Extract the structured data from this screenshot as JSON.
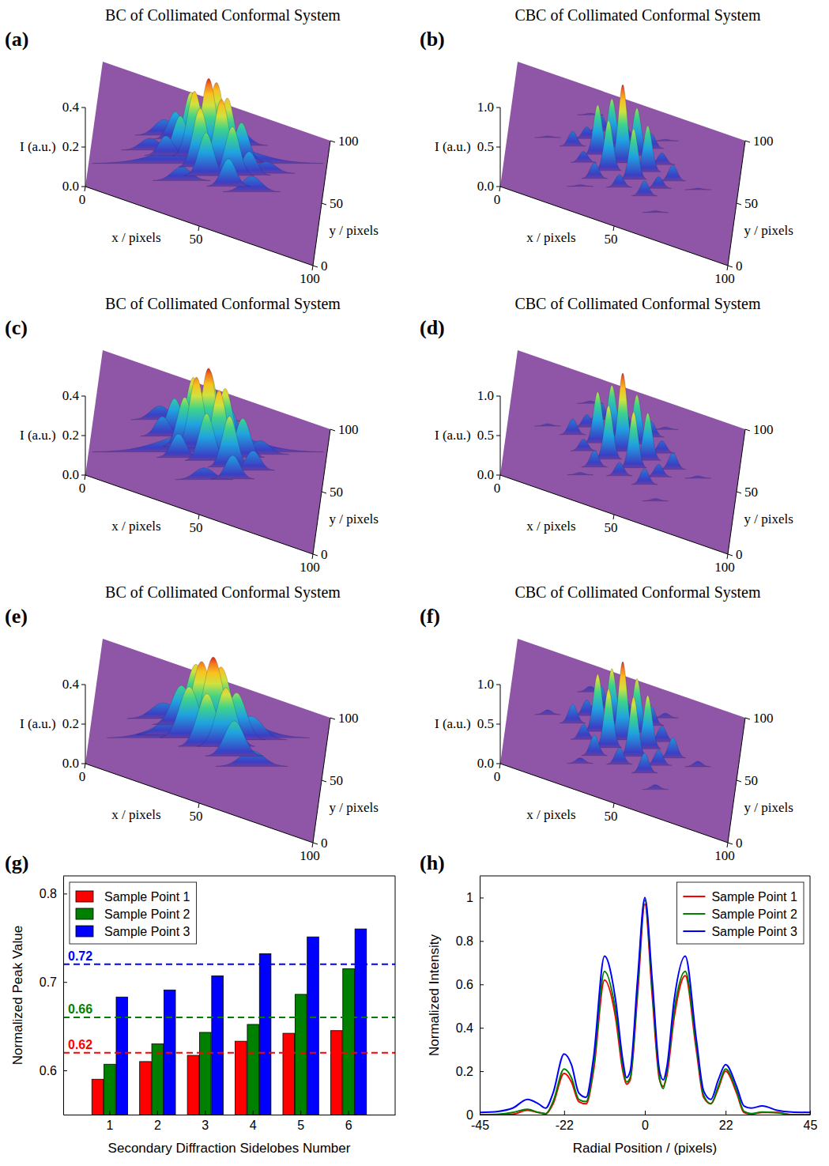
{
  "chart_data": [
    {
      "type": "surface",
      "panel_label": "(a)",
      "title": "BC of Collimated Conformal System",
      "x_label": "x / pixels",
      "y_label": "y / pixels",
      "z_label": "I (a.u.)",
      "xlim": [
        0,
        100
      ],
      "xticks": [
        0,
        50,
        100
      ],
      "ylim": [
        0,
        100
      ],
      "yticks": [
        0,
        50,
        100
      ],
      "zlim": [
        0,
        0.4
      ],
      "zticks": [
        {
          "value": 0,
          "label": "0.0"
        },
        0.2,
        0.4
      ],
      "peaks": {
        "x": [
          50,
          50,
          44,
          56,
          47,
          53,
          58,
          42,
          61,
          38,
          50,
          64,
          45,
          35,
          60,
          68,
          32,
          55,
          30,
          70,
          40,
          62,
          25,
          75
        ],
        "y": [
          50,
          55,
          52,
          50,
          45,
          60,
          57,
          58,
          47,
          49,
          40,
          60,
          65,
          60,
          38,
          52,
          45,
          70,
          60,
          40,
          30,
          72,
          45,
          58
        ],
        "values": [
          0.12,
          0.4,
          0.33,
          0.35,
          0.3,
          0.36,
          0.32,
          0.28,
          0.25,
          0.2,
          0.22,
          0.2,
          0.18,
          0.14,
          0.14,
          0.12,
          0.1,
          0.1,
          0.08,
          0.08,
          0.07,
          0.08,
          0.06,
          0.06
        ],
        "widths": [
          16,
          3,
          3,
          3,
          3,
          3,
          3,
          3,
          3,
          3,
          3,
          3,
          3,
          3,
          3,
          3,
          3,
          3,
          4,
          4,
          4,
          4,
          4,
          4
        ]
      }
    },
    {
      "type": "surface",
      "panel_label": "(b)",
      "title": "CBC of Collimated Conformal System",
      "x_label": "x / pixels",
      "y_label": "y / pixels",
      "z_label": "I (a.u.)",
      "xlim": [
        0,
        100
      ],
      "xticks": [
        0,
        50,
        100
      ],
      "ylim": [
        0,
        100
      ],
      "yticks": [
        0,
        50,
        100
      ],
      "zlim": [
        0,
        1
      ],
      "zticks": [
        {
          "value": 0,
          "label": "0.0"
        },
        0.5,
        {
          "value": 1,
          "label": "1.0"
        }
      ],
      "peaks": {
        "x": [
          50,
          61,
          55.5,
          44.5,
          39,
          44.5,
          55.5,
          66.5,
          50,
          33.5,
          33.5,
          50,
          66.5,
          72,
          61,
          39,
          28,
          39,
          61,
          83,
          66.5,
          33.5,
          17,
          33.5,
          66.5
        ],
        "y": [
          50,
          50,
          59.5,
          59.5,
          50,
          40.5,
          40.5,
          59.5,
          69,
          59.5,
          40.5,
          31,
          40.5,
          50,
          69,
          69,
          50,
          31,
          31,
          50,
          78.6,
          78.6,
          50,
          21.4,
          21.4
        ],
        "values": [
          1,
          0.59,
          0.61,
          0.617,
          0.633,
          0.642,
          0.645,
          0.15,
          0.16,
          0.15,
          0.14,
          0.16,
          0.15,
          0.2,
          0.19,
          0.2,
          0.19,
          0.2,
          0.19,
          0.02,
          0.02,
          0.02,
          0.02,
          0.02,
          0.02
        ],
        "widths": [
          1.8,
          1.8,
          1.8,
          1.8,
          1.8,
          1.8,
          1.8,
          1.8,
          1.8,
          1.8,
          1.8,
          1.8,
          1.8,
          1.8,
          1.8,
          1.8,
          1.8,
          1.8,
          1.8,
          1.8,
          1.8,
          1.8,
          1.8,
          1.8,
          1.8
        ]
      }
    },
    {
      "type": "surface",
      "panel_label": "(c)",
      "title": "BC of Collimated Conformal System",
      "x_label": "x / pixels",
      "y_label": "y / pixels",
      "z_label": "I (a.u.)",
      "xlim": [
        0,
        100
      ],
      "xticks": [
        0,
        50,
        100
      ],
      "ylim": [
        0,
        100
      ],
      "yticks": [
        0,
        50,
        100
      ],
      "zlim": [
        0,
        0.4
      ],
      "zticks": [
        {
          "value": 0,
          "label": "0.0"
        },
        0.2,
        0.4
      ],
      "peaks": {
        "x": [
          50,
          50,
          45,
          55,
          50,
          57,
          43,
          40,
          60,
          50,
          65,
          35,
          46,
          58,
          62,
          38,
          70,
          30,
          28,
          72,
          50,
          50
        ],
        "y": [
          50,
          54,
          50,
          49,
          60,
          58,
          58,
          48,
          44,
          43,
          55,
          55,
          67,
          66,
          36,
          38,
          48,
          50,
          62,
          62,
          28,
          75
        ],
        "values": [
          0.12,
          0.4,
          0.36,
          0.34,
          0.35,
          0.3,
          0.3,
          0.25,
          0.26,
          0.24,
          0.2,
          0.18,
          0.18,
          0.16,
          0.12,
          0.12,
          0.1,
          0.1,
          0.07,
          0.07,
          0.06,
          0.06
        ],
        "widths": [
          16,
          3,
          3,
          3,
          3,
          3,
          3,
          3,
          3,
          3,
          3,
          3,
          3,
          3,
          3,
          3,
          3,
          3,
          4,
          4,
          4,
          4
        ]
      }
    },
    {
      "type": "surface",
      "panel_label": "(d)",
      "title": "CBC of Collimated Conformal System",
      "x_label": "x / pixels",
      "y_label": "y / pixels",
      "z_label": "I (a.u.)",
      "xlim": [
        0,
        100
      ],
      "xticks": [
        0,
        50,
        100
      ],
      "ylim": [
        0,
        100
      ],
      "yticks": [
        0,
        50,
        100
      ],
      "zlim": [
        0,
        1
      ],
      "zticks": [
        {
          "value": 0,
          "label": "0.0"
        },
        0.5,
        {
          "value": 1,
          "label": "1.0"
        }
      ],
      "peaks": {
        "x": [
          50,
          61,
          55.5,
          44.5,
          39,
          44.5,
          55.5,
          66.5,
          50,
          33.5,
          33.5,
          50,
          66.5,
          72,
          61,
          39,
          28,
          39,
          61,
          83,
          66.5,
          33.5,
          17,
          33.5,
          66.5
        ],
        "y": [
          50,
          50,
          59.5,
          59.5,
          50,
          40.5,
          40.5,
          59.5,
          69,
          59.5,
          40.5,
          31,
          40.5,
          50,
          69,
          69,
          50,
          31,
          31,
          50,
          78.6,
          78.6,
          50,
          21.4,
          21.4
        ],
        "values": [
          1,
          0.607,
          0.63,
          0.643,
          0.652,
          0.686,
          0.715,
          0.16,
          0.17,
          0.16,
          0.15,
          0.17,
          0.16,
          0.21,
          0.2,
          0.21,
          0.2,
          0.21,
          0.2,
          0.03,
          0.03,
          0.03,
          0.03,
          0.03,
          0.03
        ],
        "widths": [
          1.8,
          1.8,
          1.8,
          1.8,
          1.8,
          1.8,
          1.8,
          1.8,
          1.8,
          1.8,
          1.8,
          1.8,
          1.8,
          1.8,
          1.8,
          1.8,
          1.8,
          1.8,
          1.8,
          1.8,
          1.8,
          1.8,
          1.8,
          1.8,
          1.8
        ]
      }
    },
    {
      "type": "surface",
      "panel_label": "(e)",
      "title": "BC of Collimated Conformal System",
      "x_label": "x / pixels",
      "y_label": "y / pixels",
      "z_label": "I (a.u.)",
      "xlim": [
        0,
        100
      ],
      "xticks": [
        0,
        50,
        100
      ],
      "ylim": [
        0,
        100
      ],
      "yticks": [
        0,
        50,
        100
      ],
      "zlim": [
        0,
        0.4
      ],
      "zticks": [
        {
          "value": 0,
          "label": "0.0"
        },
        0.2,
        0.4
      ],
      "peaks": {
        "x": [
          50,
          52,
          47,
          55,
          44,
          58,
          42,
          50,
          62,
          38,
          52,
          62,
          35,
          68,
          30,
          70
        ],
        "y": [
          52,
          55,
          53,
          60,
          60,
          50,
          47,
          45,
          58,
          55,
          66,
          45,
          45,
          62,
          55,
          42
        ],
        "values": [
          0.2,
          0.4,
          0.37,
          0.33,
          0.3,
          0.3,
          0.26,
          0.27,
          0.24,
          0.2,
          0.22,
          0.18,
          0.12,
          0.12,
          0.08,
          0.08
        ],
        "widths": [
          14,
          4,
          4,
          4,
          4,
          4,
          4,
          4,
          4,
          4,
          4,
          4,
          5,
          5,
          5,
          5
        ]
      }
    },
    {
      "type": "surface",
      "panel_label": "(f)",
      "title": "CBC of Collimated Conformal System",
      "x_label": "x / pixels",
      "y_label": "y / pixels",
      "z_label": "I (a.u.)",
      "xlim": [
        0,
        100
      ],
      "xticks": [
        0,
        50,
        100
      ],
      "ylim": [
        0,
        100
      ],
      "yticks": [
        0,
        50,
        100
      ],
      "zlim": [
        0,
        1
      ],
      "zticks": [
        {
          "value": 0,
          "label": "0.0"
        },
        0.5,
        {
          "value": 1,
          "label": "1.0"
        }
      ],
      "peaks": {
        "x": [
          50,
          61,
          55.5,
          44.5,
          39,
          44.5,
          55.5,
          66.5,
          50,
          33.5,
          33.5,
          50,
          66.5,
          72,
          61,
          39,
          28,
          39,
          61,
          83,
          66.5,
          33.5,
          17,
          33.5,
          66.5
        ],
        "y": [
          50,
          50,
          59.5,
          59.5,
          50,
          40.5,
          40.5,
          59.5,
          69,
          59.5,
          40.5,
          31,
          40.5,
          50,
          69,
          69,
          50,
          31,
          31,
          50,
          78.6,
          78.6,
          50,
          21.4,
          21.4
        ],
        "values": [
          1,
          0.683,
          0.691,
          0.707,
          0.732,
          0.751,
          0.76,
          0.2,
          0.21,
          0.2,
          0.19,
          0.21,
          0.2,
          0.26,
          0.25,
          0.28,
          0.24,
          0.26,
          0.25,
          0.07,
          0.06,
          0.07,
          0.06,
          0.07,
          0.06
        ],
        "widths": [
          1.8,
          1.8,
          1.8,
          1.8,
          1.8,
          1.8,
          1.8,
          1.8,
          1.8,
          1.8,
          1.8,
          1.8,
          1.8,
          1.8,
          1.8,
          1.8,
          1.8,
          1.8,
          1.8,
          1.8,
          1.8,
          1.8,
          1.8,
          1.8,
          1.8
        ]
      }
    },
    {
      "type": "bar",
      "panel_label": "(g)",
      "x_label": "Secondary Diffraction Sidelobes Number",
      "y_label": "Normalized Peak Value",
      "categories": [
        "1",
        "2",
        "3",
        "4",
        "5",
        "6"
      ],
      "series": [
        {
          "name": "Sample Point 1",
          "color": "#ff0000",
          "values": [
            0.59,
            0.61,
            0.617,
            0.633,
            0.642,
            0.645
          ]
        },
        {
          "name": "Sample Point 2",
          "color": "#008000",
          "values": [
            0.607,
            0.63,
            0.643,
            0.652,
            0.686,
            0.715
          ]
        },
        {
          "name": "Sample Point 3",
          "color": "#0000ff",
          "values": [
            0.683,
            0.691,
            0.707,
            0.732,
            0.751,
            0.76
          ]
        }
      ],
      "reference_lines": [
        {
          "value": 0.72,
          "color": "#0000ff",
          "line_style": "dashed"
        },
        {
          "value": 0.66,
          "color": "#008000",
          "line_style": "dashed"
        },
        {
          "value": 0.62,
          "color": "#ff0000",
          "line_style": "dashed"
        }
      ],
      "ylim": [
        0.55,
        0.82
      ],
      "yticks": [
        0.6,
        0.7,
        0.8
      ],
      "legend": "top-left"
    },
    {
      "type": "line",
      "panel_label": "(h)",
      "x_label": "Radial Position / (pixels)",
      "y_label": "Normalized Intensity",
      "x": [
        -45,
        -40,
        -36,
        -32,
        -29,
        -27,
        -25,
        -22,
        -20,
        -18,
        -16,
        -14,
        -11,
        -8,
        -6,
        -5,
        -4,
        -2,
        0,
        2,
        4,
        5,
        6,
        8,
        11,
        14,
        16,
        18,
        20,
        22,
        25,
        27,
        29,
        32,
        36,
        40,
        45
      ],
      "series": [
        {
          "name": "Sample Point 1",
          "color": "#ff0000",
          "values": [
            0,
            0,
            0.002,
            0.02,
            0.01,
            0.003,
            0.05,
            0.19,
            0.15,
            0.06,
            0.05,
            0.2,
            0.62,
            0.45,
            0.2,
            0.14,
            0.16,
            0.55,
            0.97,
            0.55,
            0.16,
            0.13,
            0.18,
            0.45,
            0.64,
            0.3,
            0.08,
            0.05,
            0.12,
            0.2,
            0.1,
            0.01,
            0.003,
            0.01,
            0.01,
            0,
            0
          ]
        },
        {
          "name": "Sample Point 2",
          "color": "#008000",
          "values": [
            0,
            0.002,
            0.01,
            0.025,
            0.01,
            0.005,
            0.06,
            0.21,
            0.17,
            0.07,
            0.06,
            0.22,
            0.66,
            0.48,
            0.22,
            0.15,
            0.17,
            0.58,
            0.99,
            0.58,
            0.17,
            0.12,
            0.2,
            0.48,
            0.66,
            0.32,
            0.09,
            0.05,
            0.13,
            0.21,
            0.11,
            0.015,
            0.005,
            0.012,
            0.008,
            0,
            0
          ]
        },
        {
          "name": "Sample Point 3",
          "color": "#0000ff",
          "values": [
            0.01,
            0.015,
            0.03,
            0.07,
            0.05,
            0.03,
            0.1,
            0.28,
            0.23,
            0.1,
            0.08,
            0.26,
            0.73,
            0.53,
            0.25,
            0.17,
            0.2,
            0.62,
            1,
            0.62,
            0.2,
            0.16,
            0.22,
            0.53,
            0.73,
            0.35,
            0.11,
            0.07,
            0.16,
            0.23,
            0.13,
            0.04,
            0.03,
            0.04,
            0.02,
            0.012,
            0.01
          ]
        }
      ],
      "xlim": [
        -45,
        45
      ],
      "xticks": [
        -45,
        -22,
        0,
        22,
        45
      ],
      "ylim": [
        0,
        1.1
      ],
      "yticks": [
        0,
        0.2,
        0.4,
        0.6,
        0.8,
        1
      ],
      "legend": "top-right"
    }
  ]
}
